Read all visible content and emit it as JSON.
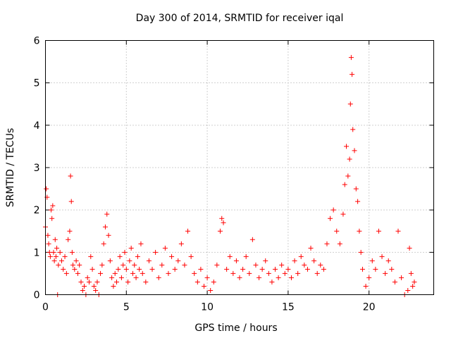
{
  "chart_data": {
    "type": "scatter",
    "title": "Day 300 of 2014, SRMTID for receiver iqal",
    "xlabel": "GPS time / hours",
    "ylabel": "SRMTID / TECUs",
    "xlim": [
      0,
      24
    ],
    "ylim": [
      0,
      6
    ],
    "xticks": [
      0,
      5,
      10,
      15,
      20
    ],
    "yticks": [
      0,
      1,
      2,
      3,
      4,
      5,
      6
    ],
    "grid": true,
    "marker": "+",
    "color": "#ff0000",
    "series": [
      {
        "name": "SRMTID",
        "points": [
          [
            0.0,
            1.6
          ],
          [
            0.05,
            2.5
          ],
          [
            0.1,
            2.3
          ],
          [
            0.15,
            1.4
          ],
          [
            0.2,
            1.2
          ],
          [
            0.25,
            1.0
          ],
          [
            0.3,
            0.9
          ],
          [
            0.35,
            2.0
          ],
          [
            0.4,
            1.8
          ],
          [
            0.45,
            2.1
          ],
          [
            0.5,
            1.0
          ],
          [
            0.55,
            0.8
          ],
          [
            0.6,
            1.3
          ],
          [
            0.65,
            0.9
          ],
          [
            0.7,
            1.1
          ],
          [
            0.75,
            0.0
          ],
          [
            0.8,
            0.7
          ],
          [
            0.9,
            1.0
          ],
          [
            1.0,
            0.8
          ],
          [
            1.1,
            0.6
          ],
          [
            1.2,
            0.9
          ],
          [
            1.3,
            0.5
          ],
          [
            1.4,
            1.3
          ],
          [
            1.5,
            1.5
          ],
          [
            1.55,
            2.8
          ],
          [
            1.6,
            2.2
          ],
          [
            1.65,
            1.0
          ],
          [
            1.7,
            0.7
          ],
          [
            1.8,
            0.6
          ],
          [
            1.9,
            0.8
          ],
          [
            2.0,
            0.5
          ],
          [
            2.1,
            0.7
          ],
          [
            2.2,
            0.3
          ],
          [
            2.3,
            0.1
          ],
          [
            2.4,
            0.2
          ],
          [
            2.5,
            0.0
          ],
          [
            2.6,
            0.4
          ],
          [
            2.7,
            0.3
          ],
          [
            2.8,
            0.9
          ],
          [
            2.9,
            0.6
          ],
          [
            3.0,
            0.2
          ],
          [
            3.1,
            0.1
          ],
          [
            3.2,
            0.3
          ],
          [
            3.3,
            0.0
          ],
          [
            3.4,
            0.5
          ],
          [
            3.5,
            0.7
          ],
          [
            3.6,
            1.2
          ],
          [
            3.7,
            1.6
          ],
          [
            3.8,
            1.9
          ],
          [
            3.9,
            1.4
          ],
          [
            4.0,
            0.8
          ],
          [
            4.1,
            0.4
          ],
          [
            4.2,
            0.2
          ],
          [
            4.3,
            0.5
          ],
          [
            4.4,
            0.3
          ],
          [
            4.5,
            0.6
          ],
          [
            4.6,
            0.9
          ],
          [
            4.7,
            0.4
          ],
          [
            4.8,
            0.7
          ],
          [
            4.9,
            1.0
          ],
          [
            5.0,
            0.6
          ],
          [
            5.1,
            0.3
          ],
          [
            5.2,
            0.8
          ],
          [
            5.3,
            1.1
          ],
          [
            5.4,
            0.5
          ],
          [
            5.5,
            0.7
          ],
          [
            5.6,
            0.4
          ],
          [
            5.7,
            0.9
          ],
          [
            5.8,
            0.6
          ],
          [
            5.9,
            1.2
          ],
          [
            6.0,
            0.5
          ],
          [
            6.2,
            0.3
          ],
          [
            6.4,
            0.8
          ],
          [
            6.6,
            0.6
          ],
          [
            6.8,
            1.0
          ],
          [
            7.0,
            0.4
          ],
          [
            7.2,
            0.7
          ],
          [
            7.4,
            1.1
          ],
          [
            7.6,
            0.5
          ],
          [
            7.8,
            0.9
          ],
          [
            8.0,
            0.6
          ],
          [
            8.2,
            0.8
          ],
          [
            8.4,
            1.2
          ],
          [
            8.6,
            0.7
          ],
          [
            8.8,
            1.5
          ],
          [
            9.0,
            0.9
          ],
          [
            9.2,
            0.5
          ],
          [
            9.4,
            0.3
          ],
          [
            9.6,
            0.6
          ],
          [
            9.8,
            0.2
          ],
          [
            10.0,
            0.4
          ],
          [
            10.2,
            0.1
          ],
          [
            10.4,
            0.3
          ],
          [
            10.6,
            0.7
          ],
          [
            10.8,
            1.5
          ],
          [
            10.9,
            1.8
          ],
          [
            11.0,
            1.7
          ],
          [
            11.2,
            0.6
          ],
          [
            11.4,
            0.9
          ],
          [
            11.6,
            0.5
          ],
          [
            11.8,
            0.8
          ],
          [
            12.0,
            0.4
          ],
          [
            12.2,
            0.6
          ],
          [
            12.4,
            0.9
          ],
          [
            12.6,
            0.5
          ],
          [
            12.8,
            1.3
          ],
          [
            13.0,
            0.7
          ],
          [
            13.2,
            0.4
          ],
          [
            13.4,
            0.6
          ],
          [
            13.6,
            0.8
          ],
          [
            13.8,
            0.5
          ],
          [
            14.0,
            0.3
          ],
          [
            14.2,
            0.6
          ],
          [
            14.4,
            0.4
          ],
          [
            14.6,
            0.7
          ],
          [
            14.8,
            0.5
          ],
          [
            15.0,
            0.6
          ],
          [
            15.2,
            0.4
          ],
          [
            15.4,
            0.8
          ],
          [
            15.6,
            0.5
          ],
          [
            15.8,
            0.9
          ],
          [
            16.0,
            0.7
          ],
          [
            16.2,
            0.6
          ],
          [
            16.4,
            1.1
          ],
          [
            16.6,
            0.8
          ],
          [
            16.8,
            0.5
          ],
          [
            17.0,
            0.7
          ],
          [
            17.2,
            0.6
          ],
          [
            17.4,
            1.2
          ],
          [
            17.6,
            1.8
          ],
          [
            17.8,
            2.0
          ],
          [
            18.0,
            1.5
          ],
          [
            18.2,
            1.2
          ],
          [
            18.4,
            1.9
          ],
          [
            18.5,
            2.6
          ],
          [
            18.6,
            3.5
          ],
          [
            18.7,
            2.8
          ],
          [
            18.8,
            3.2
          ],
          [
            18.85,
            4.5
          ],
          [
            18.9,
            5.6
          ],
          [
            18.95,
            5.2
          ],
          [
            19.0,
            3.9
          ],
          [
            19.1,
            3.4
          ],
          [
            19.2,
            2.5
          ],
          [
            19.3,
            2.2
          ],
          [
            19.4,
            1.5
          ],
          [
            19.5,
            1.0
          ],
          [
            19.6,
            0.6
          ],
          [
            19.8,
            0.2
          ],
          [
            20.0,
            0.4
          ],
          [
            20.2,
            0.8
          ],
          [
            20.4,
            0.6
          ],
          [
            20.6,
            1.5
          ],
          [
            20.8,
            0.9
          ],
          [
            21.0,
            0.5
          ],
          [
            21.2,
            0.8
          ],
          [
            21.4,
            0.6
          ],
          [
            21.6,
            0.3
          ],
          [
            21.8,
            1.5
          ],
          [
            22.0,
            0.4
          ],
          [
            22.2,
            0.0
          ],
          [
            22.4,
            0.1
          ],
          [
            22.5,
            1.1
          ],
          [
            22.6,
            0.5
          ],
          [
            22.7,
            0.2
          ],
          [
            22.8,
            0.3
          ]
        ]
      }
    ]
  }
}
